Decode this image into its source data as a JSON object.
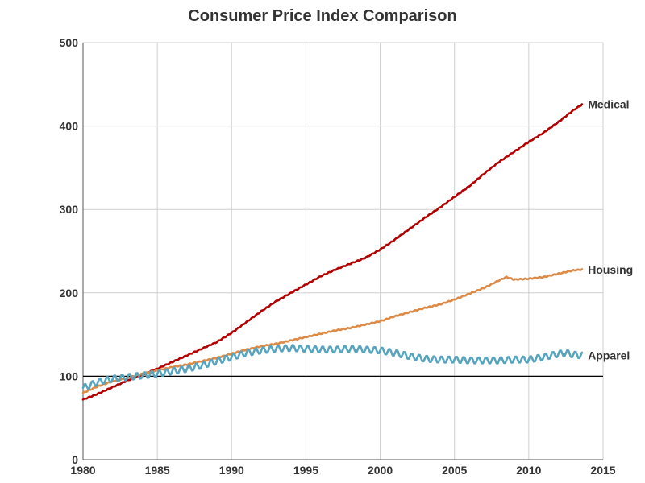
{
  "chart_data": {
    "type": "line",
    "title": "Consumer Price Index Comparison",
    "xlabel": "",
    "ylabel": "",
    "xlim": [
      1980,
      2015
    ],
    "ylim": [
      0,
      500
    ],
    "xticks": [
      1980,
      1985,
      1990,
      1995,
      2000,
      2005,
      2010,
      2015
    ],
    "yticks": [
      0,
      100,
      200,
      300,
      400,
      500
    ],
    "xtick_labels": [
      "1980",
      "1985",
      "1990",
      "1995",
      "2000",
      "2005",
      "2010",
      "2015"
    ],
    "ytick_labels": [
      "0",
      "100",
      "200",
      "300",
      "400",
      "500"
    ],
    "grid": true,
    "legend": "none",
    "reference_line": {
      "y": 100,
      "color": "#000000"
    },
    "series": [
      {
        "name": "Medical",
        "color": "#b30000",
        "points": [
          [
            1980,
            72
          ],
          [
            1981,
            79
          ],
          [
            1982,
            87
          ],
          [
            1983,
            95
          ],
          [
            1984,
            102
          ],
          [
            1985,
            109
          ],
          [
            1986,
            117
          ],
          [
            1987,
            125
          ],
          [
            1988,
            133
          ],
          [
            1989,
            141
          ],
          [
            1990,
            152
          ],
          [
            1991,
            165
          ],
          [
            1992,
            178
          ],
          [
            1993,
            190
          ],
          [
            1994,
            200
          ],
          [
            1995,
            210
          ],
          [
            1996,
            220
          ],
          [
            1997,
            228
          ],
          [
            1998,
            235
          ],
          [
            1999,
            242
          ],
          [
            2000,
            252
          ],
          [
            2001,
            264
          ],
          [
            2002,
            277
          ],
          [
            2003,
            290
          ],
          [
            2004,
            302
          ],
          [
            2005,
            315
          ],
          [
            2006,
            328
          ],
          [
            2007,
            343
          ],
          [
            2008,
            357
          ],
          [
            2009,
            369
          ],
          [
            2010,
            381
          ],
          [
            2011,
            392
          ],
          [
            2012,
            405
          ],
          [
            2013,
            419
          ],
          [
            2013.6,
            426
          ]
        ]
      },
      {
        "name": "Housing",
        "color": "#dd8a46",
        "points": [
          [
            1980,
            80
          ],
          [
            1981,
            88
          ],
          [
            1982,
            94
          ],
          [
            1983,
            98
          ],
          [
            1984,
            103
          ],
          [
            1985,
            107
          ],
          [
            1986,
            111
          ],
          [
            1987,
            114
          ],
          [
            1988,
            118
          ],
          [
            1989,
            122
          ],
          [
            1990,
            127
          ],
          [
            1991,
            132
          ],
          [
            1992,
            136
          ],
          [
            1993,
            139
          ],
          [
            1994,
            143
          ],
          [
            1995,
            147
          ],
          [
            1996,
            151
          ],
          [
            1997,
            155
          ],
          [
            1998,
            158
          ],
          [
            1999,
            162
          ],
          [
            2000,
            166
          ],
          [
            2001,
            172
          ],
          [
            2002,
            177
          ],
          [
            2003,
            182
          ],
          [
            2004,
            186
          ],
          [
            2005,
            192
          ],
          [
            2006,
            199
          ],
          [
            2007,
            206
          ],
          [
            2008,
            215
          ],
          [
            2008.5,
            219
          ],
          [
            2009,
            216
          ],
          [
            2010,
            217
          ],
          [
            2011,
            219
          ],
          [
            2012,
            223
          ],
          [
            2013,
            227
          ],
          [
            2013.6,
            228
          ]
        ]
      },
      {
        "name": "Apparel",
        "color": "#56a4bd",
        "points": [
          [
            1980,
            86
          ],
          [
            1981,
            93
          ],
          [
            1982,
            97
          ],
          [
            1983,
            99
          ],
          [
            1984,
            101
          ],
          [
            1985,
            103
          ],
          [
            1986,
            106
          ],
          [
            1987,
            109
          ],
          [
            1988,
            113
          ],
          [
            1989,
            118
          ],
          [
            1990,
            123
          ],
          [
            1991,
            128
          ],
          [
            1992,
            131
          ],
          [
            1993,
            133
          ],
          [
            1994,
            134
          ],
          [
            1995,
            133
          ],
          [
            1996,
            132
          ],
          [
            1997,
            132
          ],
          [
            1998,
            133
          ],
          [
            1999,
            132
          ],
          [
            2000,
            131
          ],
          [
            2001,
            128
          ],
          [
            2002,
            124
          ],
          [
            2003,
            121
          ],
          [
            2004,
            120
          ],
          [
            2005,
            120
          ],
          [
            2006,
            119
          ],
          [
            2007,
            119
          ],
          [
            2008,
            119
          ],
          [
            2009,
            120
          ],
          [
            2010,
            120
          ],
          [
            2011,
            123
          ],
          [
            2012,
            127
          ],
          [
            2012.5,
            128
          ],
          [
            2013,
            126
          ],
          [
            2013.6,
            125
          ]
        ],
        "seasonal_amplitude": 4
      }
    ]
  }
}
